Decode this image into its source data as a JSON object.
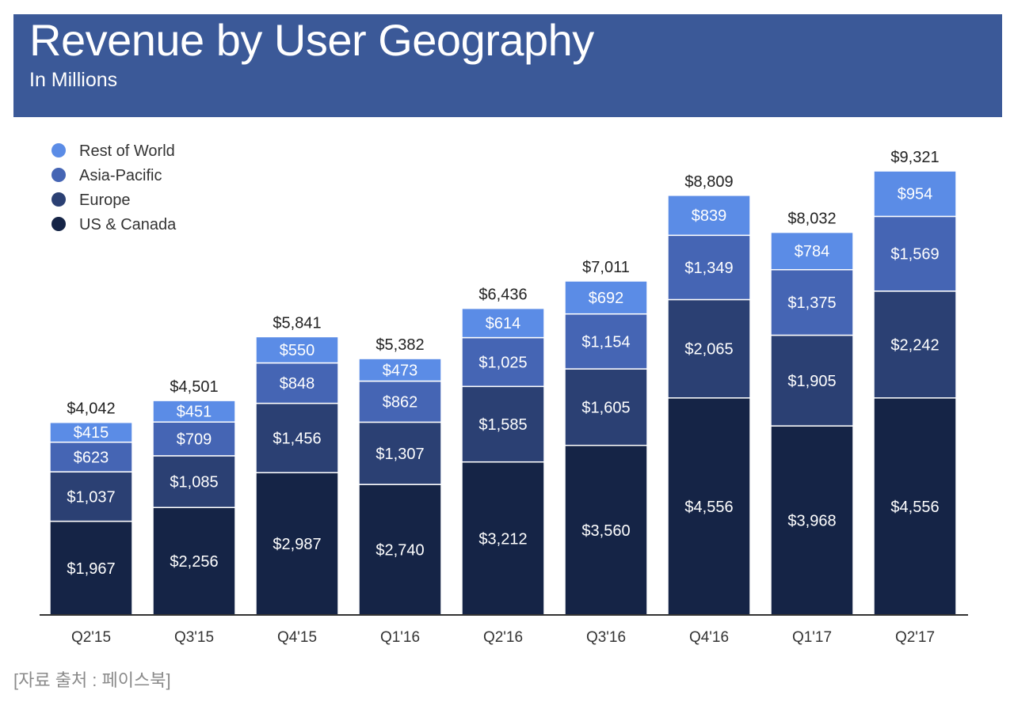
{
  "header": {
    "title": "Revenue by User Geography",
    "subtitle": "In Millions"
  },
  "source": "[자료 출처 : 페이스북]",
  "colors": {
    "header_bg": "#3b5998",
    "rest_of_world": "#5b8ce6",
    "asia_pacific": "#4565b4",
    "europe": "#2b4073",
    "us_canada": "#152446",
    "axis": "#333333"
  },
  "chart_data": {
    "type": "bar",
    "stacked": true,
    "title": "Revenue by User Geography",
    "subtitle": "In Millions",
    "xlabel": "",
    "ylabel": "",
    "ylim": [
      0,
      9321
    ],
    "legend_position": "top-left",
    "grid": false,
    "categories": [
      "Q2'15",
      "Q3'15",
      "Q4'15",
      "Q1'16",
      "Q2'16",
      "Q3'16",
      "Q4'16",
      "Q1'17",
      "Q2'17"
    ],
    "totals": [
      4042,
      4501,
      5841,
      5382,
      6436,
      7011,
      8809,
      8032,
      9321
    ],
    "total_labels": [
      "$4,042",
      "$4,501",
      "$5,841",
      "$5,382",
      "$6,436",
      "$7,011",
      "$8,809",
      "$8,032",
      "$9,321"
    ],
    "series": [
      {
        "name": "US & Canada",
        "color": "#152446",
        "values": [
          1967,
          2256,
          2987,
          2740,
          3212,
          3560,
          4556,
          3968,
          4556
        ],
        "labels": [
          "$1,967",
          "$2,256",
          "$2,987",
          "$2,740",
          "$3,212",
          "$3,560",
          "$4,556",
          "$3,968",
          "$4,556"
        ]
      },
      {
        "name": "Europe",
        "color": "#2b4073",
        "values": [
          1037,
          1085,
          1456,
          1307,
          1585,
          1605,
          2065,
          1905,
          2242
        ],
        "labels": [
          "$1,037",
          "$1,085",
          "$1,456",
          "$1,307",
          "$1,585",
          "$1,605",
          "$2,065",
          "$1,905",
          "$2,242"
        ]
      },
      {
        "name": "Asia-Pacific",
        "color": "#4565b4",
        "values": [
          623,
          709,
          848,
          862,
          1025,
          1154,
          1349,
          1375,
          1569
        ],
        "labels": [
          "$623",
          "$709",
          "$848",
          "$862",
          "$1,025",
          "$1,154",
          "$1,349",
          "$1,375",
          "$1,569"
        ]
      },
      {
        "name": "Rest of World",
        "color": "#5b8ce6",
        "values": [
          415,
          451,
          550,
          473,
          614,
          692,
          839,
          784,
          954
        ],
        "labels": [
          "$415",
          "$451",
          "$550",
          "$473",
          "$614",
          "$692",
          "$839",
          "$784",
          "$954"
        ]
      }
    ],
    "legend": [
      "Rest of World",
      "Asia-Pacific",
      "Europe",
      "US & Canada"
    ]
  }
}
